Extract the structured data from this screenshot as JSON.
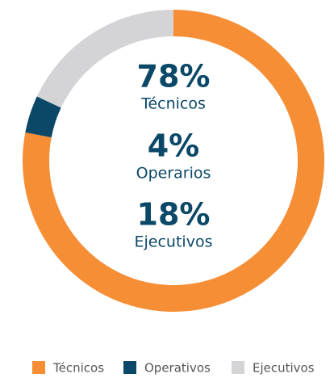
{
  "chart_data": {
    "type": "pie",
    "donut": true,
    "categories": [
      "Técnicos",
      "Operativos",
      "Ejecutivos"
    ],
    "values": [
      78,
      4,
      18
    ],
    "value_labels": [
      "78%",
      "4%",
      "18%"
    ],
    "center_labels": [
      "Técnicos",
      "Operarios",
      "Ejecutivos"
    ],
    "colors": [
      "#f68e35",
      "#0b4867",
      "#d4d4d6"
    ],
    "legend": "bottom"
  }
}
